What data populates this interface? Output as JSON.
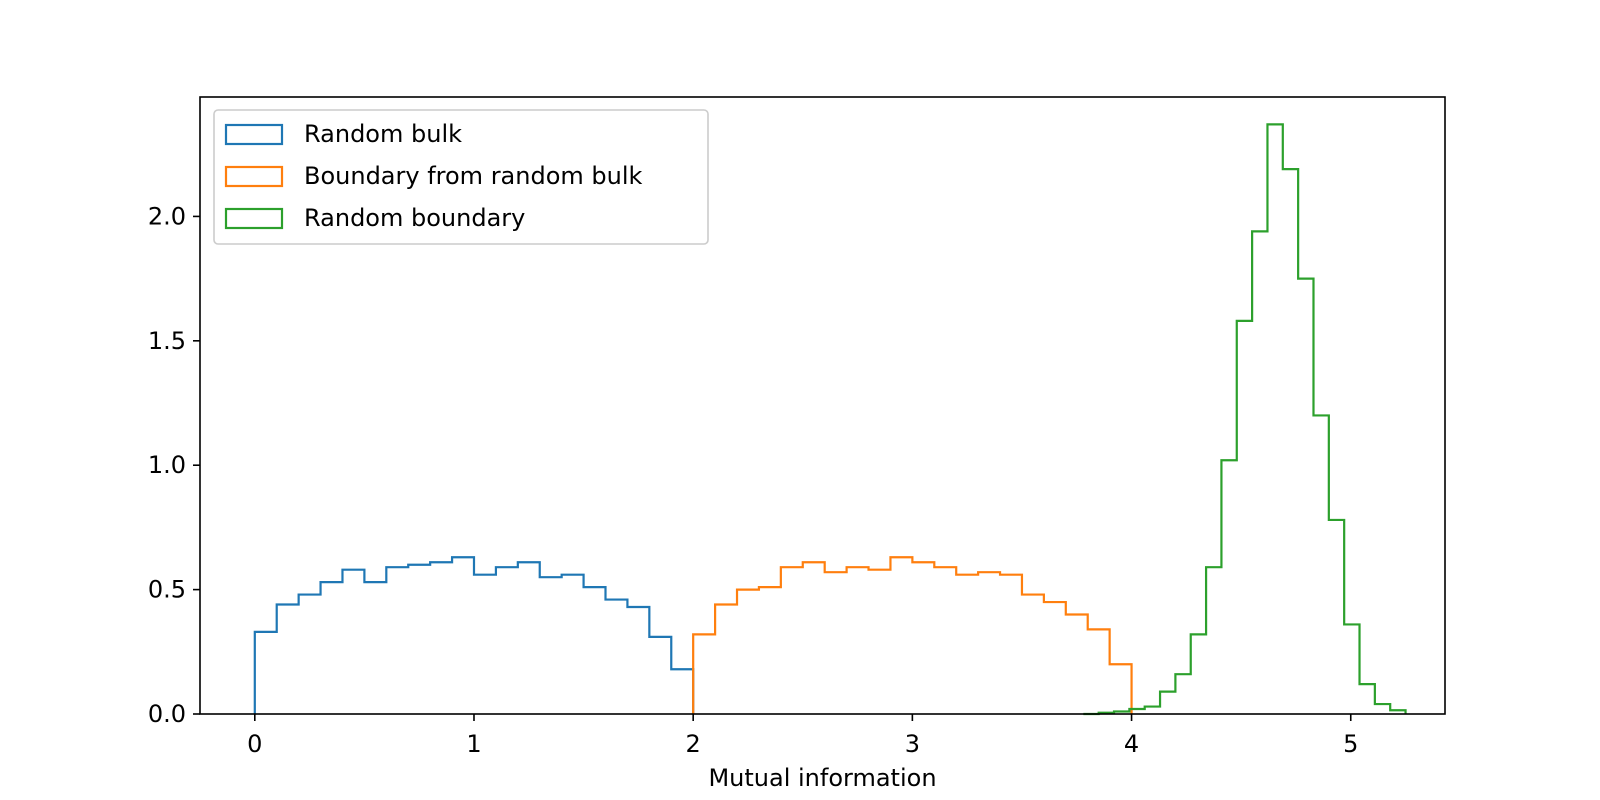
{
  "chart_data": {
    "type": "histogram",
    "title": "",
    "xlabel": "Mutual information",
    "ylabel": "",
    "xlim": [
      -0.25,
      5.43
    ],
    "ylim": [
      0,
      2.48
    ],
    "xticks": [
      0,
      1,
      2,
      3,
      4,
      5
    ],
    "xtick_labels": [
      "0",
      "1",
      "2",
      "3",
      "4",
      "5"
    ],
    "yticks": [
      0.0,
      0.5,
      1.0,
      1.5,
      2.0
    ],
    "ytick_labels": [
      "0.0",
      "0.5",
      "1.0",
      "1.5",
      "2.0"
    ],
    "grid": false,
    "legend_position": "upper left",
    "series": [
      {
        "name": "Random bulk",
        "color": "#1f77b4",
        "histtype": "step",
        "bin_start": 0.0,
        "bin_width": 0.1,
        "values": [
          0.33,
          0.44,
          0.48,
          0.53,
          0.58,
          0.53,
          0.59,
          0.6,
          0.61,
          0.63,
          0.56,
          0.59,
          0.61,
          0.55,
          0.56,
          0.51,
          0.46,
          0.43,
          0.31,
          0.18
        ]
      },
      {
        "name": "Boundary from random bulk",
        "color": "#ff7f0e",
        "histtype": "step",
        "bin_start": 2.0,
        "bin_width": 0.1,
        "values": [
          0.32,
          0.44,
          0.5,
          0.51,
          0.59,
          0.61,
          0.57,
          0.59,
          0.58,
          0.63,
          0.61,
          0.59,
          0.56,
          0.57,
          0.56,
          0.48,
          0.45,
          0.4,
          0.34,
          0.2
        ]
      },
      {
        "name": "Random boundary",
        "color": "#2ca02c",
        "histtype": "step",
        "bin_start": 3.78,
        "bin_width": 0.07,
        "values": [
          0.0,
          0.005,
          0.01,
          0.02,
          0.03,
          0.09,
          0.16,
          0.32,
          0.59,
          1.02,
          1.58,
          1.94,
          2.37,
          2.19,
          1.75,
          1.2,
          0.78,
          0.36,
          0.12,
          0.04,
          0.015
        ]
      }
    ]
  }
}
